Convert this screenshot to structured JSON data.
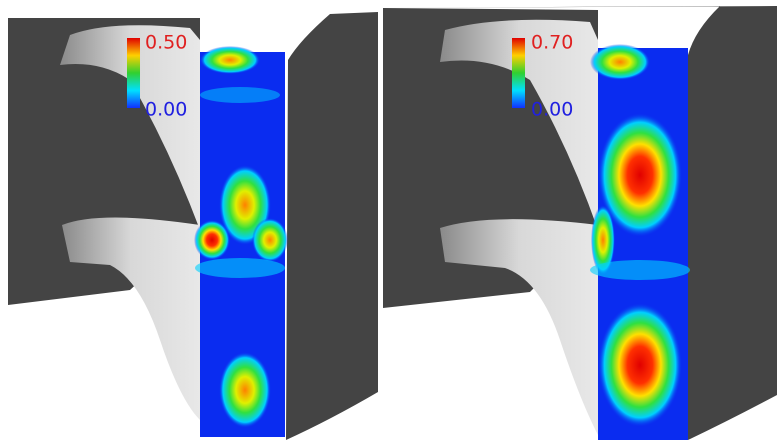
{
  "panels": [
    {
      "colorbar": {
        "max": "0.50",
        "min": "0.00"
      }
    },
    {
      "colorbar": {
        "max": "0.70",
        "min": "0.00"
      }
    }
  ]
}
